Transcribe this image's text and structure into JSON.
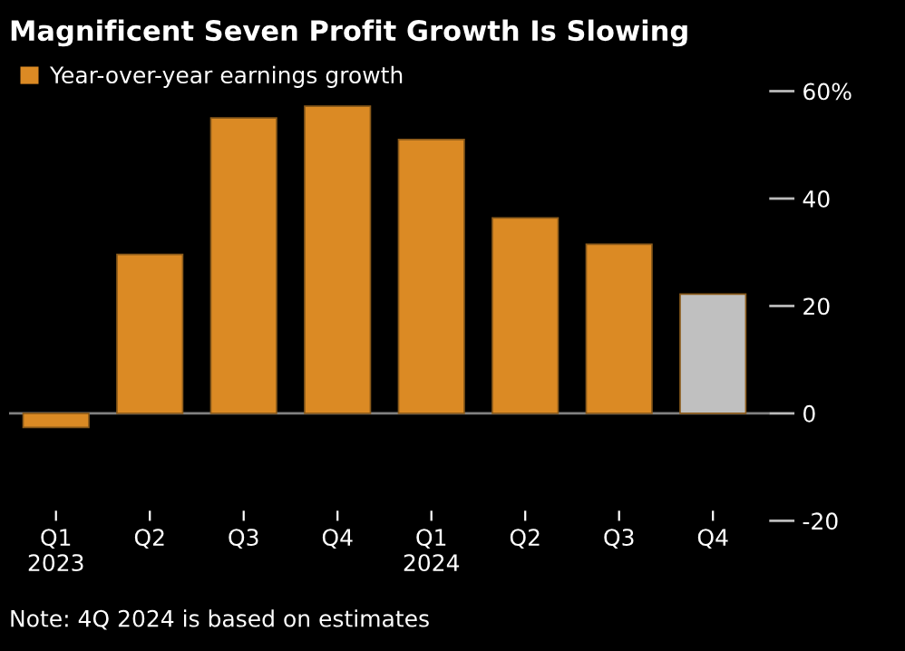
{
  "chart_data": {
    "type": "bar",
    "title": "Magnificent Seven Profit Growth Is Slowing",
    "categories": [
      "Q1\n2023",
      "Q2",
      "Q3",
      "Q4",
      "Q1\n2024",
      "Q2",
      "Q3",
      "Q4"
    ],
    "series": [
      {
        "name": "Year-over-year earnings growth",
        "color": "#db8a24",
        "colors": [
          "#db8a24",
          "#db8a24",
          "#db8a24",
          "#db8a24",
          "#db8a24",
          "#db8a24",
          "#db8a24",
          "#c0c0c0"
        ],
        "values": [
          -2.6,
          29.6,
          55.0,
          57.2,
          51.0,
          36.4,
          31.5,
          22.2
        ]
      }
    ],
    "ylim": [
      -20,
      60
    ],
    "yticks": [
      {
        "value": -20,
        "label": "-20"
      },
      0,
      20,
      40,
      {
        "value": 60,
        "label": "60%"
      }
    ],
    "ref_lines": [
      {
        "axis": "y",
        "value": 0,
        "color": "#808080"
      }
    ],
    "legend": "top left",
    "grid": false,
    "annotations": [
      "Note: 4Q 2024 is based on estimates"
    ]
  }
}
